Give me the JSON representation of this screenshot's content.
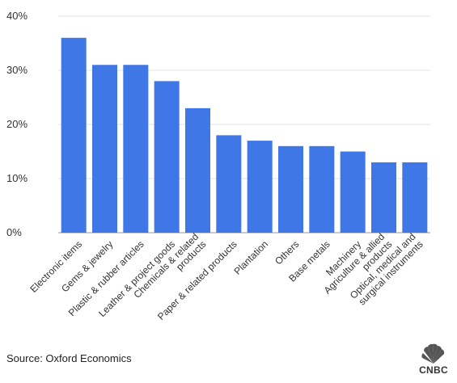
{
  "chart_data": {
    "type": "bar",
    "categories": [
      "Electronic items",
      "Gems & jewelry",
      "Plastic & rubber articles",
      "Leather & project goods",
      "Chemicals & related products",
      "Paper & related products",
      "Plantation",
      "Others",
      "Base metals",
      "Machinery",
      "Agriculture & allied products",
      "Optical, medical and surgical instruments"
    ],
    "category_label_lines": [
      [
        "Electronic items"
      ],
      [
        "Gems & jewelry"
      ],
      [
        "Plastic & rubber articles"
      ],
      [
        "Leather & project goods"
      ],
      [
        "Chemicals & related",
        "products"
      ],
      [
        "Paper & related products"
      ],
      [
        "Plantation"
      ],
      [
        "Others"
      ],
      [
        "Base metals"
      ],
      [
        "Machinery"
      ],
      [
        "Agriculture & allied",
        "products"
      ],
      [
        "Optical, medical and",
        "surgical instruments"
      ]
    ],
    "values": [
      36,
      31,
      31,
      28,
      23,
      18,
      17,
      16,
      16,
      15,
      13,
      13
    ],
    "ylim": [
      0,
      40
    ],
    "yticks": [
      0,
      10,
      20,
      30,
      40
    ],
    "ytick_labels": [
      "0%",
      "10%",
      "20%",
      "30%",
      "40%"
    ],
    "bar_color": "#3f77e6",
    "grid": true
  },
  "footer": {
    "source": "Source: Oxford Economics",
    "logo_text": "CNBC"
  }
}
